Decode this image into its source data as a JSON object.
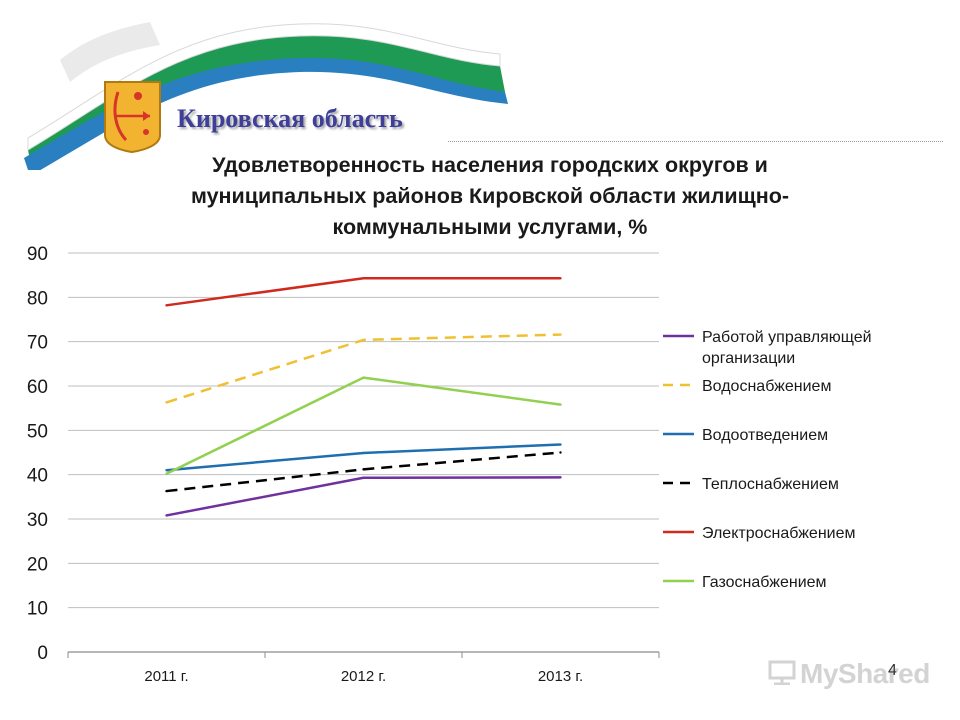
{
  "header": {
    "region_title": "Кировская область",
    "slide_number": "4",
    "watermark": "MyShared"
  },
  "colors": {
    "ribbon_green": "#1f9a55",
    "ribbon_blue": "#2a7fc0",
    "title_blue": "#3f3f9a",
    "emblem_gold": "#f2b430",
    "emblem_red": "#d8342a"
  },
  "chart_data": {
    "type": "line",
    "title_lines": [
      "Удовлетворенность населения городских округов и",
      "муниципальных районов Кировской области жилищно-",
      "коммунальными услугами, %"
    ],
    "xlabel": "",
    "ylabel": "",
    "categories": [
      "2011 г.",
      "2012 г.",
      "2013 г."
    ],
    "ylim": [
      0,
      90
    ],
    "yticks": [
      "0",
      "10",
      "20",
      "30",
      "40",
      "50",
      "60",
      "70",
      "80",
      "90"
    ],
    "grid": true,
    "legend_position": "right",
    "series": [
      {
        "name_lines": [
          "Работой управляющей",
          "организации"
        ],
        "values": [
          30.8,
          39.3,
          39.4
        ],
        "color": "#7030a0",
        "dash": "solid"
      },
      {
        "name_lines": [
          "Водоснабжением"
        ],
        "values": [
          56.3,
          70.4,
          71.6
        ],
        "color": "#f0c030",
        "dash": "dashed"
      },
      {
        "name_lines": [
          "Водоотведением"
        ],
        "values": [
          41.0,
          44.9,
          46.8
        ],
        "color": "#1f6fb0",
        "dash": "solid"
      },
      {
        "name_lines": [
          "Теплоснабжением"
        ],
        "values": [
          36.3,
          41.2,
          45.0
        ],
        "color": "#000000",
        "dash": "dashed"
      },
      {
        "name_lines": [
          "Электроснабжением"
        ],
        "values": [
          78.2,
          84.3,
          84.3
        ],
        "color": "#d02a1e",
        "dash": "solid"
      },
      {
        "name_lines": [
          "Газоснабжением"
        ],
        "values": [
          40.2,
          61.9,
          55.8
        ],
        "color": "#92d050",
        "dash": "solid"
      }
    ]
  }
}
